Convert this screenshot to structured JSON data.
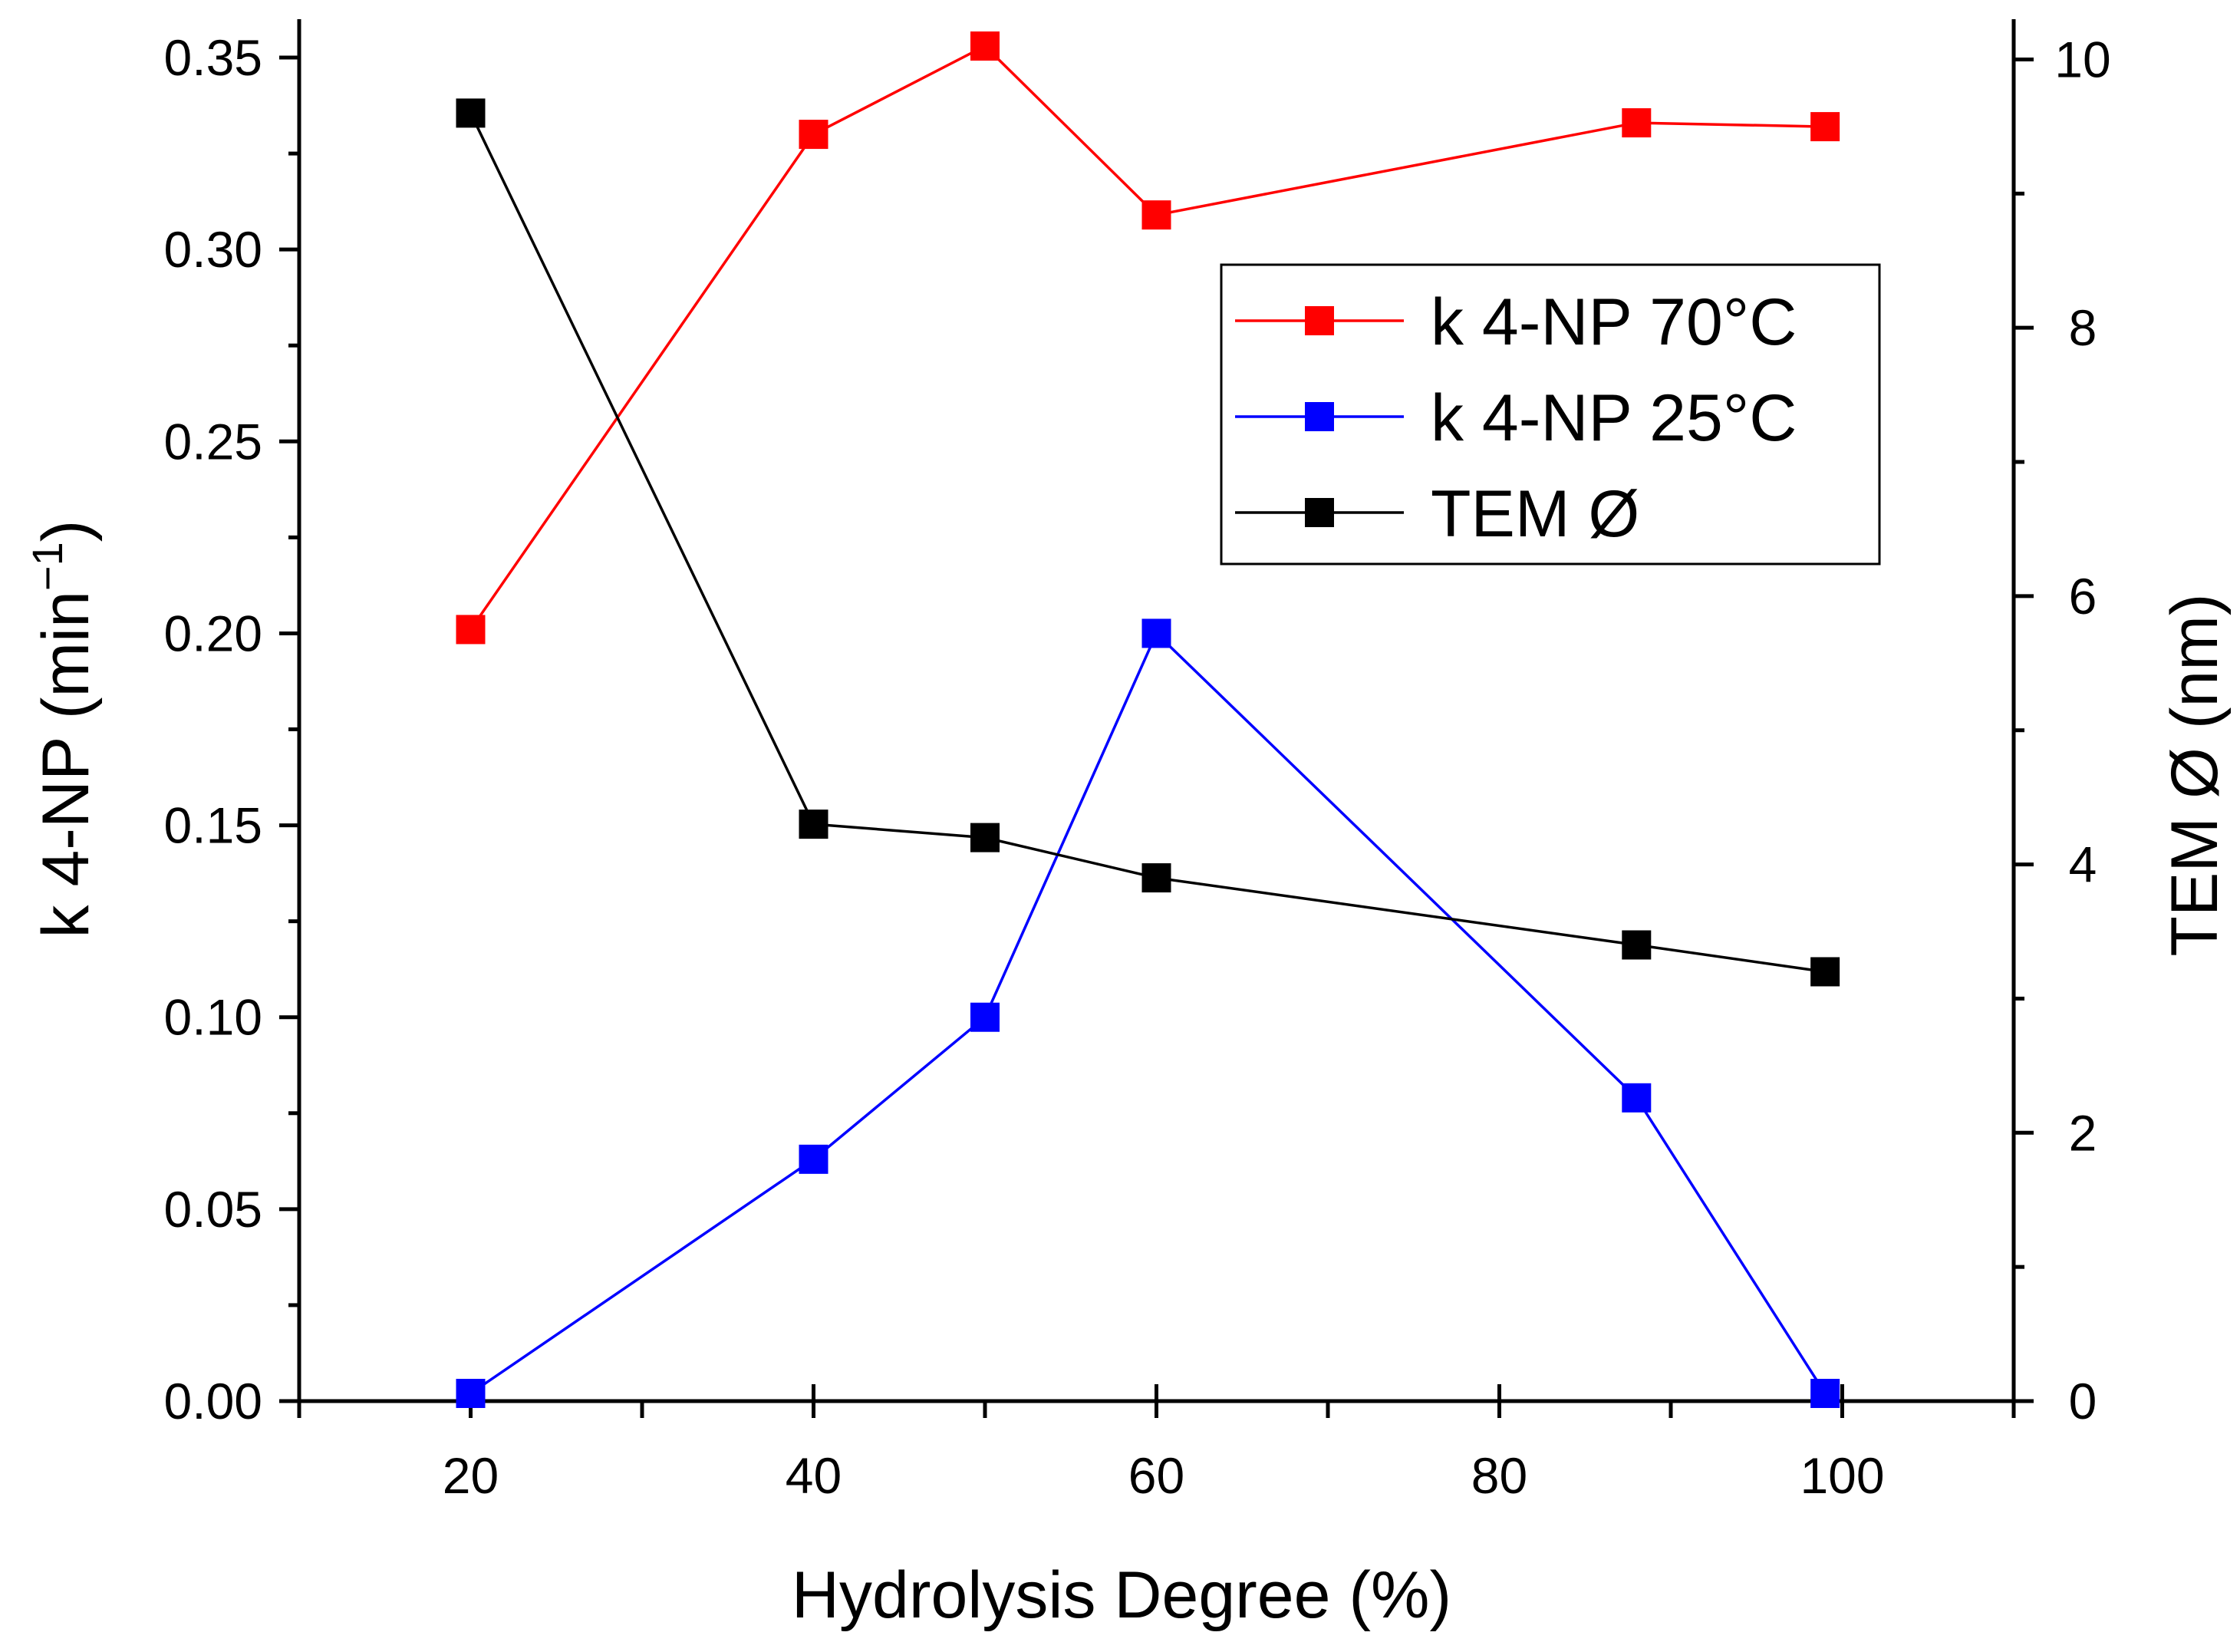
{
  "chart_data": {
    "type": "line",
    "x": [
      20,
      40,
      50,
      60,
      88,
      99
    ],
    "xlabel": "Hydrolysis Degree (%)",
    "xlim": [
      10,
      110
    ],
    "xticks": [
      20,
      40,
      60,
      80,
      100
    ],
    "xtick_labels": [
      "20",
      "40",
      "60",
      "80",
      "100"
    ],
    "ylabel_left": "k 4-NP (min",
    "ylabel_left_sup": "−1",
    "ylabel_left_close": ")",
    "ylim_left": [
      0,
      0.36
    ],
    "yticks_left": [
      0,
      0.05,
      0.1,
      0.15,
      0.2,
      0.25,
      0.3,
      0.35
    ],
    "ytick_labels_left": [
      "0.00",
      "0.05",
      "0.10",
      "0.15",
      "0.20",
      "0.25",
      "0.30",
      "0.35"
    ],
    "ylabel_right": "TEM Ø (nm)",
    "ylim_right": [
      0,
      10.3
    ],
    "yticks_right": [
      0,
      2,
      4,
      6,
      8,
      10
    ],
    "ytick_labels_right": [
      "0",
      "2",
      "4",
      "6",
      "8",
      "10"
    ],
    "series": [
      {
        "name": "k 4-NP 70°C",
        "axis": "left",
        "color": "#ff0000",
        "values": [
          0.201,
          0.33,
          0.353,
          0.309,
          0.333,
          0.332
        ]
      },
      {
        "name": "k 4-NP 25°C",
        "axis": "left",
        "color": "#0000ff",
        "values": [
          0.002,
          0.063,
          0.1,
          0.2,
          0.079,
          0.002
        ]
      },
      {
        "name": "TEM Ø",
        "axis": "right",
        "color": "#000000",
        "values": [
          9.6,
          4.3,
          4.2,
          3.9,
          3.4,
          3.2
        ]
      }
    ],
    "legend_position": "upper-right"
  }
}
